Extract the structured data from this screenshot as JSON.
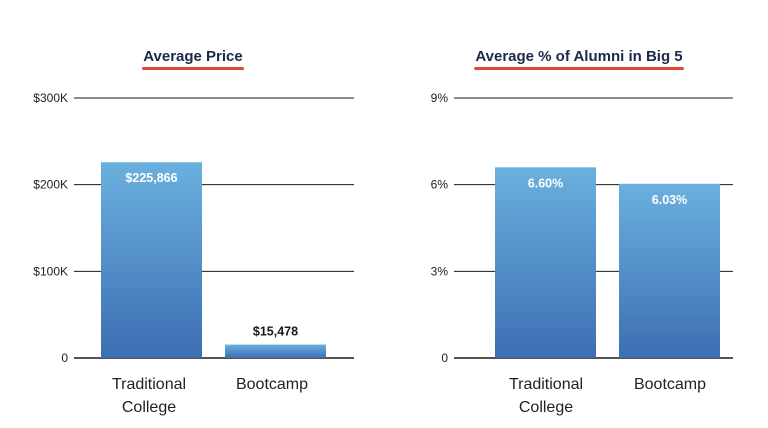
{
  "colors": {
    "bar_top": "#6ab0de",
    "bar_bottom": "#3d6eb3",
    "underline": "#e0463a",
    "gridline": "#1a1a1a",
    "title_text": "#1b2a4a",
    "label_inside": "#ffffff",
    "label_outside": "#1a1a1a"
  },
  "chart_data": [
    {
      "type": "bar",
      "title": "Average Price",
      "xlabel": "",
      "ylabel": "",
      "categories": [
        "Traditional College",
        "Bootcamp"
      ],
      "category_lines": [
        [
          "Traditional",
          "College"
        ],
        [
          "Bootcamp"
        ]
      ],
      "values": [
        225866,
        15478
      ],
      "data_labels": [
        "$225,866",
        "$15,478"
      ],
      "ylim": [
        0,
        300000
      ],
      "yticks": [
        0,
        100000,
        200000,
        300000
      ],
      "ytick_labels": [
        "0",
        "$100K",
        "$200K",
        "$300K"
      ],
      "grid": true,
      "legend": "none"
    },
    {
      "type": "bar",
      "title": "Average % of Alumni in Big 5",
      "xlabel": "",
      "ylabel": "",
      "categories": [
        "Traditional College",
        "Bootcamp"
      ],
      "category_lines": [
        [
          "Traditional",
          "College"
        ],
        [
          "Bootcamp"
        ]
      ],
      "values": [
        6.6,
        6.03
      ],
      "data_labels": [
        "6.60%",
        "6.03%"
      ],
      "ylim": [
        0,
        9
      ],
      "yticks": [
        0,
        3,
        6,
        9
      ],
      "ytick_labels": [
        "0",
        "3%",
        "6%",
        "9%"
      ],
      "grid": true,
      "legend": "none"
    }
  ]
}
